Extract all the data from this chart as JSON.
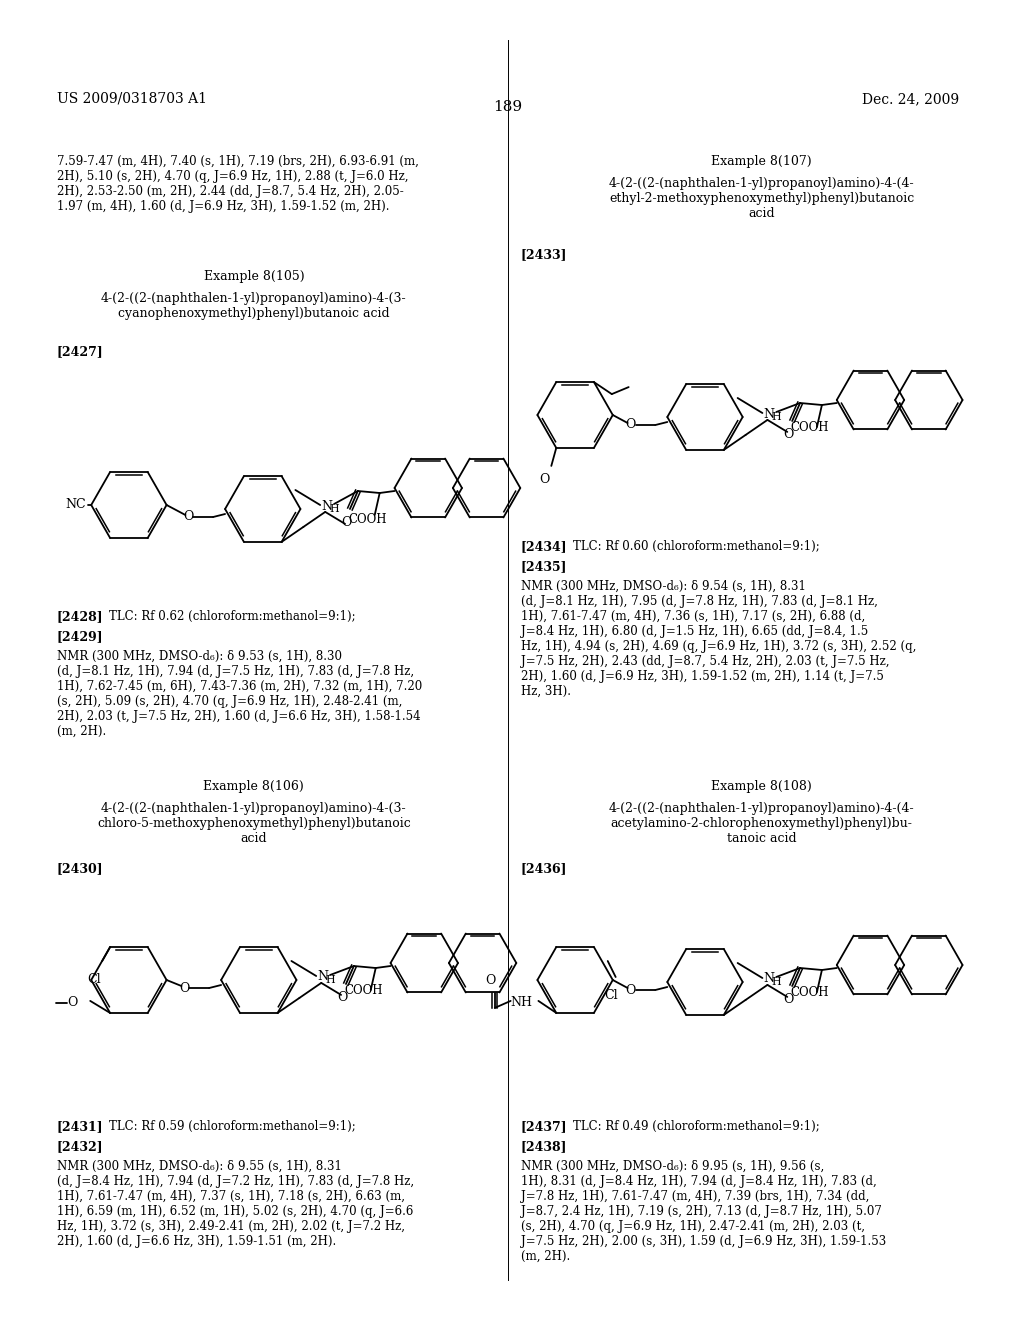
{
  "page_header_left": "US 2009/0318703 A1",
  "page_header_right": "Dec. 24, 2009",
  "page_number": "189",
  "background_color": "#ffffff",
  "text_color": "#000000",
  "top_left_nmr": "7.59-7.47 (m, 4H), 7.40 (s, 1H), 7.19 (brs, 2H), 6.93-6.91 (m,\n2H), 5.10 (s, 2H), 4.70 (q, J=6.9 Hz, 1H), 2.88 (t, J=6.0 Hz,\n2H), 2.53-2.50 (m, 2H), 2.44 (dd, J=8.7, 5.4 Hz, 2H), 2.05-\n1.97 (m, 4H), 1.60 (d, J=6.9 Hz, 3H), 1.59-1.52 (m, 2H).",
  "ex105_title": "Example 8(105)",
  "ex105_name": "4-(2-((2-(naphthalen-1-yl)propanoyl)amino)-4-(3-\ncyanophenoxymethyl)phenyl)butanoic acid",
  "ex105_ref": "[2427]",
  "ex105_tlc_ref": "[2428]",
  "ex105_tlc": "TLC: Rf 0.62 (chloroform:methanol=9:1);",
  "ex105_nmr_ref": "[2429]",
  "ex105_nmr": "NMR (300 MHz, DMSO-d₆): δ 9.53 (s, 1H), 8.30\n(d, J=8.1 Hz, 1H), 7.94 (d, J=7.5 Hz, 1H), 7.83 (d, J=7.8 Hz,\n1H), 7.62-7.45 (m, 6H), 7.43-7.36 (m, 2H), 7.32 (m, 1H), 7.20\n(s, 2H), 5.09 (s, 2H), 4.70 (q, J=6.9 Hz, 1H), 2.48-2.41 (m,\n2H), 2.03 (t, J=7.5 Hz, 2H), 1.60 (d, J=6.6 Hz, 3H), 1.58-1.54\n(m, 2H).",
  "ex106_title": "Example 8(106)",
  "ex106_name": "4-(2-((2-(naphthalen-1-yl)propanoyl)amino)-4-(3-\nchloro-5-methoxyphenoxymethyl)phenyl)butanoic\nacid",
  "ex106_ref": "[2430]",
  "ex106_tlc_ref": "[2431]",
  "ex106_tlc": "TLC: Rf 0.59 (chloroform:methanol=9:1);",
  "ex106_nmr_ref": "[2432]",
  "ex106_nmr": "NMR (300 MHz, DMSO-d₆): δ 9.55 (s, 1H), 8.31\n(d, J=8.4 Hz, 1H), 7.94 (d, J=7.2 Hz, 1H), 7.83 (d, J=7.8 Hz,\n1H), 7.61-7.47 (m, 4H), 7.37 (s, 1H), 7.18 (s, 2H), 6.63 (m,\n1H), 6.59 (m, 1H), 6.52 (m, 1H), 5.02 (s, 2H), 4.70 (q, J=6.6\nHz, 1H), 3.72 (s, 3H), 2.49-2.41 (m, 2H), 2.02 (t, J=7.2 Hz,\n2H), 1.60 (d, J=6.6 Hz, 3H), 1.59-1.51 (m, 2H).",
  "ex107_title": "Example 8(107)",
  "ex107_name": "4-(2-((2-(naphthalen-1-yl)propanoyl)amino)-4-(4-\nethyl-2-methoxyphenoxymethyl)phenyl)butanoic\nacid",
  "ex107_ref": "[2433]",
  "ex107_tlc_ref": "[2434]",
  "ex107_tlc": "TLC: Rf 0.60 (chloroform:methanol=9:1);",
  "ex107_nmr_ref": "[2435]",
  "ex107_nmr": "NMR (300 MHz, DMSO-d₆): δ 9.54 (s, 1H), 8.31\n(d, J=8.1 Hz, 1H), 7.95 (d, J=7.8 Hz, 1H), 7.83 (d, J=8.1 Hz,\n1H), 7.61-7.47 (m, 4H), 7.36 (s, 1H), 7.17 (s, 2H), 6.88 (d,\nJ=8.4 Hz, 1H), 6.80 (d, J=1.5 Hz, 1H), 6.65 (dd, J=8.4, 1.5\nHz, 1H), 4.94 (s, 2H), 4.69 (q, J=6.9 Hz, 1H), 3.72 (s, 3H), 2.52 (q,\nJ=7.5 Hz, 2H), 2.43 (dd, J=8.7, 5.4 Hz, 2H), 2.03 (t, J=7.5 Hz,\n2H), 1.60 (d, J=6.9 Hz, 3H), 1.59-1.52 (m, 2H), 1.14 (t, J=7.5\nHz, 3H).",
  "ex108_title": "Example 8(108)",
  "ex108_name": "4-(2-((2-(naphthalen-1-yl)propanoyl)amino)-4-(4-\nacetylamino-2-chlorophenoxymethyl)phenyl)bu-\ntanoic acid",
  "ex108_ref": "[2436]",
  "ex108_tlc_ref": "[2437]",
  "ex108_tlc": "TLC: Rf 0.49 (chloroform:methanol=9:1);",
  "ex108_nmr_ref": "[2438]",
  "ex108_nmr": "NMR (300 MHz, DMSO-d₆): δ 9.95 (s, 1H), 9.56 (s,\n1H), 8.31 (d, J=8.4 Hz, 1H), 7.94 (d, J=8.4 Hz, 1H), 7.83 (d,\nJ=7.8 Hz, 1H), 7.61-7.47 (m, 4H), 7.39 (brs, 1H), 7.34 (dd,\nJ=8.7, 2.4 Hz, 1H), 7.19 (s, 2H), 7.13 (d, J=8.7 Hz, 1H), 5.07\n(s, 2H), 4.70 (q, J=6.9 Hz, 1H), 2.47-2.41 (m, 2H), 2.03 (t,\nJ=7.5 Hz, 2H), 2.00 (s, 3H), 1.59 (d, J=6.9 Hz, 3H), 1.59-1.53\n(m, 2H)."
}
